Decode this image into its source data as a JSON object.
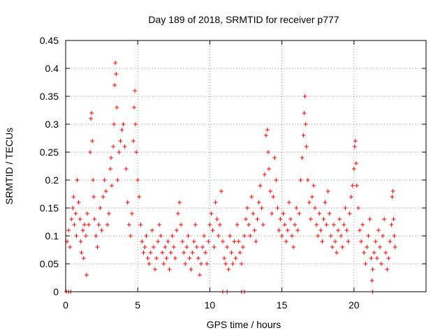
{
  "chart_data": {
    "type": "scatter",
    "title": "Day 189 of 2018, SRMTID for receiver p777",
    "xlabel": "GPS time / hours",
    "ylabel": "SRMTID / TECUs",
    "xlim": [
      0,
      25
    ],
    "ylim": [
      0,
      0.45
    ],
    "x_ticks": [
      0,
      5,
      10,
      15,
      20
    ],
    "x_tick_labels": [
      "0",
      "5",
      "10",
      "15",
      "20"
    ],
    "y_ticks": [
      0,
      0.05,
      0.1,
      0.15,
      0.2,
      0.25,
      0.3,
      0.35,
      0.4,
      0.45
    ],
    "y_tick_labels": [
      "0",
      "0.05",
      "0.1",
      "0.15",
      "0.2",
      "0.25",
      "0.3",
      "0.35",
      "0.4",
      "0.45"
    ],
    "grid": true,
    "marker": "+",
    "color": "#ff0000",
    "series": [
      {
        "name": "SRMTID",
        "points": [
          [
            0.05,
            0.0
          ],
          [
            0.2,
            0.0
          ],
          [
            0.35,
            0.0
          ],
          [
            10.9,
            0.0
          ],
          [
            11.2,
            0.0
          ],
          [
            12.2,
            0.0
          ],
          [
            12.4,
            0.0
          ],
          [
            21.3,
            0.0
          ],
          [
            0.1,
            0.09
          ],
          [
            0.2,
            0.11
          ],
          [
            0.3,
            0.08
          ],
          [
            0.4,
            0.13
          ],
          [
            0.5,
            0.15
          ],
          [
            0.55,
            0.17
          ],
          [
            0.6,
            0.12
          ],
          [
            0.7,
            0.14
          ],
          [
            0.75,
            0.1
          ],
          [
            0.8,
            0.2
          ],
          [
            0.9,
            0.16
          ],
          [
            1.0,
            0.13
          ],
          [
            1.05,
            0.09
          ],
          [
            1.1,
            0.07
          ],
          [
            1.2,
            0.11
          ],
          [
            1.25,
            0.06
          ],
          [
            1.3,
            0.12
          ],
          [
            1.4,
            0.1
          ],
          [
            1.45,
            0.03
          ],
          [
            1.5,
            0.14
          ],
          [
            1.6,
            0.12
          ],
          [
            1.7,
            0.25
          ],
          [
            1.75,
            0.31
          ],
          [
            1.8,
            0.32
          ],
          [
            1.85,
            0.27
          ],
          [
            1.9,
            0.2
          ],
          [
            1.95,
            0.17
          ],
          [
            2.0,
            0.13
          ],
          [
            2.1,
            0.1
          ],
          [
            2.2,
            0.08
          ],
          [
            2.3,
            0.12
          ],
          [
            2.4,
            0.15
          ],
          [
            2.5,
            0.11
          ],
          [
            2.6,
            0.17
          ],
          [
            2.7,
            0.2
          ],
          [
            2.8,
            0.18
          ],
          [
            2.9,
            0.12
          ],
          [
            3.0,
            0.14
          ],
          [
            3.1,
            0.22
          ],
          [
            3.15,
            0.24
          ],
          [
            3.2,
            0.19
          ],
          [
            3.3,
            0.26
          ],
          [
            3.35,
            0.3
          ],
          [
            3.4,
            0.37
          ],
          [
            3.45,
            0.41
          ],
          [
            3.5,
            0.39
          ],
          [
            3.55,
            0.33
          ],
          [
            3.6,
            0.2
          ],
          [
            3.7,
            0.25
          ],
          [
            3.8,
            0.27
          ],
          [
            3.9,
            0.29
          ],
          [
            4.0,
            0.3
          ],
          [
            4.1,
            0.26
          ],
          [
            4.2,
            0.22
          ],
          [
            4.3,
            0.16
          ],
          [
            4.4,
            0.12
          ],
          [
            4.5,
            0.1
          ],
          [
            4.6,
            0.14
          ],
          [
            4.7,
            0.27
          ],
          [
            4.75,
            0.33
          ],
          [
            4.8,
            0.36
          ],
          [
            4.85,
            0.3
          ],
          [
            4.9,
            0.25
          ],
          [
            5.0,
            0.2
          ],
          [
            5.1,
            0.17
          ],
          [
            5.2,
            0.12
          ],
          [
            5.3,
            0.09
          ],
          [
            5.4,
            0.07
          ],
          [
            5.5,
            0.08
          ],
          [
            5.6,
            0.1
          ],
          [
            5.7,
            0.06
          ],
          [
            5.8,
            0.05
          ],
          [
            5.9,
            0.07
          ],
          [
            6.0,
            0.11
          ],
          [
            6.1,
            0.08
          ],
          [
            6.2,
            0.04
          ],
          [
            6.3,
            0.06
          ],
          [
            6.4,
            0.09
          ],
          [
            6.5,
            0.12
          ],
          [
            6.6,
            0.1
          ],
          [
            6.7,
            0.07
          ],
          [
            6.8,
            0.05
          ],
          [
            6.9,
            0.08
          ],
          [
            7.0,
            0.06
          ],
          [
            7.1,
            0.09
          ],
          [
            7.2,
            0.04
          ],
          [
            7.3,
            0.07
          ],
          [
            7.4,
            0.1
          ],
          [
            7.5,
            0.08
          ],
          [
            7.6,
            0.06
          ],
          [
            7.7,
            0.11
          ],
          [
            7.8,
            0.14
          ],
          [
            7.9,
            0.16
          ],
          [
            8.0,
            0.12
          ],
          [
            8.1,
            0.09
          ],
          [
            8.2,
            0.07
          ],
          [
            8.3,
            0.05
          ],
          [
            8.4,
            0.08
          ],
          [
            8.5,
            0.1
          ],
          [
            8.6,
            0.06
          ],
          [
            8.7,
            0.04
          ],
          [
            8.8,
            0.07
          ],
          [
            8.9,
            0.09
          ],
          [
            9.0,
            0.12
          ],
          [
            9.1,
            0.08
          ],
          [
            9.2,
            0.06
          ],
          [
            9.3,
            0.03
          ],
          [
            9.4,
            0.05
          ],
          [
            9.5,
            0.08
          ],
          [
            9.6,
            0.1
          ],
          [
            9.7,
            0.07
          ],
          [
            9.8,
            0.05
          ],
          [
            9.9,
            0.09
          ],
          [
            10.0,
            0.12
          ],
          [
            10.1,
            0.14
          ],
          [
            10.2,
            0.11
          ],
          [
            10.3,
            0.08
          ],
          [
            10.4,
            0.16
          ],
          [
            10.5,
            0.13
          ],
          [
            10.6,
            0.1
          ],
          [
            10.7,
            0.12
          ],
          [
            10.8,
            0.18
          ],
          [
            10.9,
            0.09
          ],
          [
            11.0,
            0.06
          ],
          [
            11.1,
            0.05
          ],
          [
            11.2,
            0.08
          ],
          [
            11.3,
            0.04
          ],
          [
            11.4,
            0.1
          ],
          [
            11.5,
            0.07
          ],
          [
            11.6,
            0.05
          ],
          [
            11.7,
            0.09
          ],
          [
            11.8,
            0.06
          ],
          [
            11.9,
            0.12
          ],
          [
            12.0,
            0.09
          ],
          [
            12.1,
            0.07
          ],
          [
            12.2,
            0.05
          ],
          [
            12.3,
            0.08
          ],
          [
            12.4,
            0.1
          ],
          [
            12.5,
            0.13
          ],
          [
            12.6,
            0.15
          ],
          [
            12.7,
            0.12
          ],
          [
            12.8,
            0.1
          ],
          [
            12.9,
            0.17
          ],
          [
            13.0,
            0.14
          ],
          [
            13.1,
            0.11
          ],
          [
            13.2,
            0.09
          ],
          [
            13.3,
            0.13
          ],
          [
            13.4,
            0.16
          ],
          [
            13.5,
            0.19
          ],
          [
            13.6,
            0.15
          ],
          [
            13.7,
            0.12
          ],
          [
            13.8,
            0.21
          ],
          [
            13.9,
            0.28
          ],
          [
            14.0,
            0.29
          ],
          [
            14.05,
            0.25
          ],
          [
            14.1,
            0.22
          ],
          [
            14.2,
            0.18
          ],
          [
            14.3,
            0.14
          ],
          [
            14.4,
            0.17
          ],
          [
            14.5,
            0.24
          ],
          [
            14.6,
            0.2
          ],
          [
            14.7,
            0.15
          ],
          [
            14.8,
            0.11
          ],
          [
            14.9,
            0.13
          ],
          [
            15.0,
            0.1
          ],
          [
            15.1,
            0.14
          ],
          [
            15.2,
            0.12
          ],
          [
            15.3,
            0.09
          ],
          [
            15.4,
            0.11
          ],
          [
            15.5,
            0.16
          ],
          [
            15.6,
            0.13
          ],
          [
            15.7,
            0.1
          ],
          [
            15.8,
            0.08
          ],
          [
            15.9,
            0.12
          ],
          [
            16.0,
            0.15
          ],
          [
            16.1,
            0.11
          ],
          [
            16.2,
            0.14
          ],
          [
            16.3,
            0.2
          ],
          [
            16.4,
            0.24
          ],
          [
            16.5,
            0.28
          ],
          [
            16.55,
            0.32
          ],
          [
            16.6,
            0.35
          ],
          [
            16.65,
            0.3
          ],
          [
            16.7,
            0.26
          ],
          [
            16.8,
            0.2
          ],
          [
            16.9,
            0.16
          ],
          [
            17.0,
            0.13
          ],
          [
            17.1,
            0.17
          ],
          [
            17.2,
            0.19
          ],
          [
            17.3,
            0.15
          ],
          [
            17.4,
            0.12
          ],
          [
            17.5,
            0.1
          ],
          [
            17.6,
            0.14
          ],
          [
            17.7,
            0.11
          ],
          [
            17.8,
            0.09
          ],
          [
            17.9,
            0.13
          ],
          [
            18.0,
            0.16
          ],
          [
            18.1,
            0.12
          ],
          [
            18.2,
            0.18
          ],
          [
            18.3,
            0.14
          ],
          [
            18.4,
            0.1
          ],
          [
            18.5,
            0.08
          ],
          [
            18.6,
            0.12
          ],
          [
            18.7,
            0.09
          ],
          [
            18.8,
            0.07
          ],
          [
            18.9,
            0.11
          ],
          [
            19.0,
            0.13
          ],
          [
            19.1,
            0.1
          ],
          [
            19.2,
            0.08
          ],
          [
            19.3,
            0.12
          ],
          [
            19.4,
            0.15
          ],
          [
            19.5,
            0.11
          ],
          [
            19.6,
            0.09
          ],
          [
            19.7,
            0.14
          ],
          [
            19.8,
            0.17
          ],
          [
            19.9,
            0.19
          ],
          [
            20.0,
            0.22
          ],
          [
            20.05,
            0.26
          ],
          [
            20.1,
            0.27
          ],
          [
            20.15,
            0.23
          ],
          [
            20.2,
            0.19
          ],
          [
            20.3,
            0.15
          ],
          [
            20.4,
            0.11
          ],
          [
            20.5,
            0.09
          ],
          [
            20.6,
            0.12
          ],
          [
            20.7,
            0.07
          ],
          [
            20.8,
            0.05
          ],
          [
            20.9,
            0.08
          ],
          [
            21.0,
            0.1
          ],
          [
            21.1,
            0.13
          ],
          [
            21.2,
            0.06
          ],
          [
            21.25,
            0.02
          ],
          [
            21.3,
            0.04
          ],
          [
            21.4,
            0.07
          ],
          [
            21.5,
            0.09
          ],
          [
            21.6,
            0.06
          ],
          [
            21.7,
            0.11
          ],
          [
            21.8,
            0.08
          ],
          [
            21.9,
            0.05
          ],
          [
            22.0,
            0.1
          ],
          [
            22.1,
            0.13
          ],
          [
            22.2,
            0.07
          ],
          [
            22.3,
            0.04
          ],
          [
            22.4,
            0.06
          ],
          [
            22.5,
            0.09
          ],
          [
            22.6,
            0.12
          ],
          [
            22.65,
            0.17
          ],
          [
            22.7,
            0.18
          ],
          [
            22.75,
            0.13
          ],
          [
            22.8,
            0.1
          ],
          [
            22.85,
            0.08
          ]
        ]
      }
    ]
  }
}
